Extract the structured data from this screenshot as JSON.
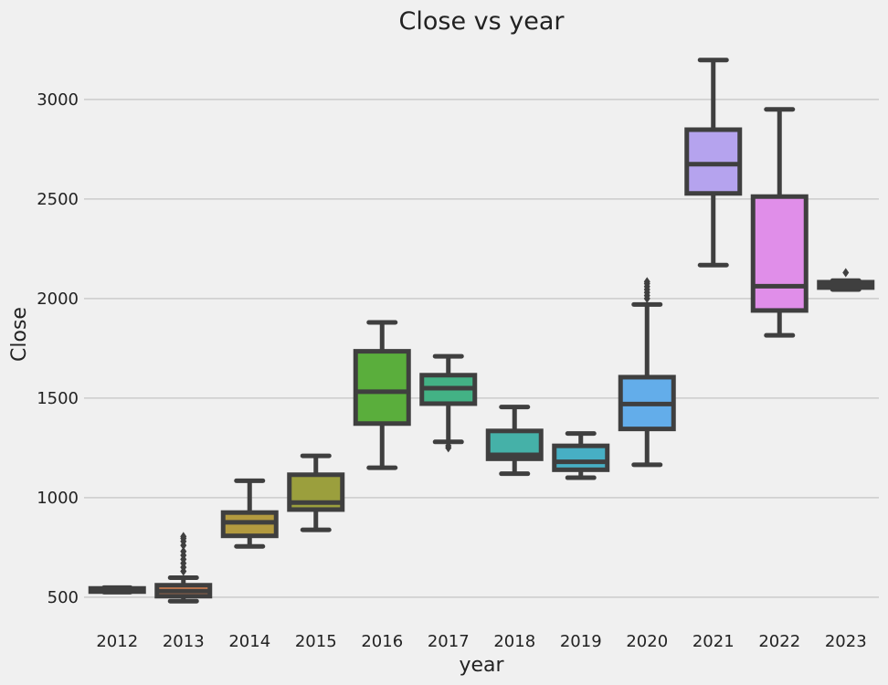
{
  "chart_data": {
    "type": "box",
    "title": "Close vs year",
    "xlabel": "year",
    "ylabel": "Close",
    "ylim": [
      380,
      3270
    ],
    "yticks": [
      500,
      1000,
      1500,
      2000,
      2500,
      3000
    ],
    "grid": "horizontal",
    "categories": [
      "2012",
      "2013",
      "2014",
      "2015",
      "2016",
      "2017",
      "2018",
      "2019",
      "2020",
      "2021",
      "2022",
      "2023"
    ],
    "boxes": [
      {
        "x": "2012",
        "whisker_low": 525,
        "q1": 528,
        "median": 536,
        "q3": 544,
        "whisker_high": 548,
        "outliers": [],
        "color": "#4c72b0"
      },
      {
        "x": "2013",
        "whisker_low": 480,
        "q1": 505,
        "median": 530,
        "q3": 560,
        "whisker_high": 598,
        "outliers": [
          630,
          650,
          670,
          690,
          710,
          730,
          760,
          780,
          795,
          805
        ],
        "color": "#dd8452"
      },
      {
        "x": "2014",
        "whisker_low": 755,
        "q1": 808,
        "median": 876,
        "q3": 925,
        "whisker_high": 1085,
        "outliers": [],
        "color": "#b39a3f"
      },
      {
        "x": "2015",
        "whisker_low": 838,
        "q1": 940,
        "median": 975,
        "q3": 1115,
        "whisker_high": 1210,
        "outliers": [],
        "color": "#9b9f3d"
      },
      {
        "x": "2016",
        "whisker_low": 1150,
        "q1": 1372,
        "median": 1532,
        "q3": 1735,
        "whisker_high": 1880,
        "outliers": [],
        "color": "#5aae3c"
      },
      {
        "x": "2017",
        "whisker_low": 1280,
        "q1": 1472,
        "median": 1550,
        "q3": 1615,
        "whisker_high": 1710,
        "outliers": [
          1250,
          1260
        ],
        "color": "#43b285"
      },
      {
        "x": "2018",
        "whisker_low": 1120,
        "q1": 1195,
        "median": 1215,
        "q3": 1335,
        "whisker_high": 1455,
        "outliers": [],
        "color": "#45b1a8"
      },
      {
        "x": "2019",
        "whisker_low": 1100,
        "q1": 1140,
        "median": 1180,
        "q3": 1260,
        "whisker_high": 1322,
        "outliers": [],
        "color": "#47afc4"
      },
      {
        "x": "2020",
        "whisker_low": 1165,
        "q1": 1345,
        "median": 1470,
        "q3": 1605,
        "whisker_high": 1970,
        "outliers": [
          2000,
          2015,
          2030,
          2045,
          2060,
          2075,
          2085
        ],
        "color": "#63adea"
      },
      {
        "x": "2021",
        "whisker_low": 2168,
        "q1": 2528,
        "median": 2675,
        "q3": 2848,
        "whisker_high": 3198,
        "outliers": [],
        "color": "#b5a3ee"
      },
      {
        "x": "2022",
        "whisker_low": 1815,
        "q1": 1940,
        "median": 2062,
        "q3": 2512,
        "whisker_high": 2950,
        "outliers": [],
        "color": "#e08ee9"
      },
      {
        "x": "2023",
        "whisker_low": 2045,
        "q1": 2055,
        "median": 2068,
        "q3": 2082,
        "whisker_high": 2090,
        "outliers": [
          2130
        ],
        "color": "#f07ec4"
      }
    ]
  }
}
